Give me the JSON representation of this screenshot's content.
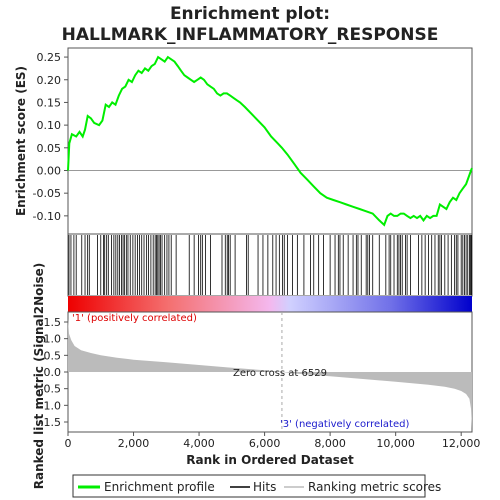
{
  "chart_data": {
    "type": "line",
    "title_line1": "Enrichment plot:",
    "title_line2": "HALLMARK_INFLAMMATORY_RESPONSE",
    "top_panel": {
      "ylabel": "Enrichment score (ES)",
      "ylim": [
        -0.14,
        0.27
      ],
      "yticks": [
        "0.25",
        "0.20",
        "0.15",
        "0.10",
        "0.05",
        "0.00",
        "-0.05",
        "-0.10"
      ],
      "ytick_values": [
        0.25,
        0.2,
        0.15,
        0.1,
        0.05,
        0.0,
        -0.05,
        -0.1
      ],
      "series": [
        {
          "name": "Enrichment profile",
          "color": "#00ee00",
          "x": [
            0,
            40,
            120,
            250,
            350,
            450,
            520,
            600,
            700,
            800,
            950,
            1050,
            1150,
            1250,
            1350,
            1450,
            1550,
            1650,
            1750,
            1850,
            1950,
            2050,
            2150,
            2250,
            2350,
            2450,
            2550,
            2650,
            2750,
            2850,
            2950,
            3050,
            3150,
            3250,
            3350,
            3450,
            3550,
            3650,
            3750,
            3850,
            3950,
            4050,
            4150,
            4250,
            4350,
            4450,
            4550,
            4650,
            4750,
            4850,
            4950,
            5050,
            5150,
            5250,
            5400,
            5600,
            5800,
            6000,
            6200,
            6400,
            6529,
            6700,
            6900,
            7100,
            7300,
            7500,
            7700,
            7900,
            8100,
            8300,
            8500,
            8700,
            8900,
            9100,
            9300,
            9500,
            9650,
            9750,
            9850,
            9950,
            10050,
            10150,
            10250,
            10350,
            10450,
            10550,
            10650,
            10750,
            10850,
            10950,
            11050,
            11150,
            11250,
            11350,
            11450,
            11550,
            11650,
            11750,
            11850,
            11950,
            12050,
            12150,
            12250,
            12300,
            12330
          ],
          "values": [
            0.0,
            0.06,
            0.08,
            0.075,
            0.085,
            0.075,
            0.09,
            0.12,
            0.115,
            0.105,
            0.1,
            0.11,
            0.145,
            0.14,
            0.15,
            0.145,
            0.165,
            0.18,
            0.185,
            0.2,
            0.195,
            0.21,
            0.22,
            0.215,
            0.225,
            0.22,
            0.23,
            0.235,
            0.25,
            0.245,
            0.24,
            0.25,
            0.245,
            0.24,
            0.23,
            0.22,
            0.21,
            0.205,
            0.2,
            0.195,
            0.2,
            0.205,
            0.2,
            0.19,
            0.185,
            0.18,
            0.17,
            0.165,
            0.17,
            0.17,
            0.165,
            0.16,
            0.155,
            0.15,
            0.14,
            0.125,
            0.11,
            0.095,
            0.075,
            0.06,
            0.05,
            0.035,
            0.015,
            -0.005,
            -0.02,
            -0.035,
            -0.05,
            -0.06,
            -0.065,
            -0.07,
            -0.075,
            -0.08,
            -0.085,
            -0.09,
            -0.095,
            -0.11,
            -0.12,
            -0.1,
            -0.095,
            -0.1,
            -0.1,
            -0.095,
            -0.095,
            -0.1,
            -0.105,
            -0.1,
            -0.105,
            -0.1,
            -0.11,
            -0.1,
            -0.105,
            -0.1,
            -0.1,
            -0.075,
            -0.08,
            -0.085,
            -0.07,
            -0.06,
            -0.065,
            -0.05,
            -0.04,
            -0.03,
            -0.01,
            0.0,
            0.005
          ]
        }
      ]
    },
    "hits_panel": {
      "series_name": "Hits",
      "hit_ranks": [
        30,
        90,
        180,
        250,
        420,
        520,
        600,
        650,
        900,
        1000,
        1080,
        1120,
        1180,
        1230,
        1330,
        1400,
        1460,
        1520,
        1570,
        1630,
        1680,
        1720,
        1780,
        1830,
        1900,
        1980,
        2050,
        2120,
        2180,
        2250,
        2320,
        2400,
        2460,
        2530,
        2600,
        2660,
        2700,
        2740,
        2780,
        2820,
        2870,
        2950,
        3020,
        3080,
        3150,
        3300,
        3700,
        3850,
        3980,
        4050,
        4100,
        4200,
        4350,
        4700,
        4800,
        4860,
        4900,
        4950,
        5100,
        5450,
        5500,
        5800,
        5950,
        6100,
        6250,
        6350,
        6450,
        6550,
        6600,
        6700,
        6850,
        7000,
        7200,
        7400,
        7500,
        7650,
        7800,
        8000,
        8150,
        8250,
        8300,
        8400,
        8550,
        8700,
        8800,
        8850,
        8950,
        9100,
        9150,
        9200,
        9300,
        9500,
        9700,
        9800,
        9850,
        9950,
        10050,
        10100,
        10150,
        10200,
        10300,
        10350,
        10450,
        10700,
        10800,
        10900,
        11000,
        11100,
        11200,
        11300,
        11350,
        11400,
        11500,
        11600,
        11700,
        11800,
        11850,
        11900,
        12000,
        12050,
        12100,
        12150,
        12200,
        12250,
        12280,
        12310
      ]
    },
    "gradient_bar": {
      "positive_color": "#ee0000",
      "negative_color": "#0000cc",
      "positive_label": "'1' (positively correlated)",
      "negative_label": "'3' (negatively correlated)",
      "zero_cross_label": "Zero cross at 6529",
      "zero_cross": 6529
    },
    "bottom_panel": {
      "ylabel": "Ranked list metric (Signal2Noise)",
      "ylim": [
        -1.8,
        1.8
      ],
      "yticks": [
        "1.5",
        "1.0",
        "0.5",
        "0.0",
        "-0.5",
        "-1.0",
        "-1.5"
      ],
      "ytick_values": [
        1.5,
        1.0,
        0.5,
        0.0,
        -0.5,
        -1.0,
        -1.5
      ],
      "series_name": "Ranking metric scores",
      "x": [
        0,
        30,
        100,
        200,
        400,
        700,
        1000,
        1500,
        2000,
        3000,
        4000,
        5000,
        6000,
        6529,
        7000,
        8000,
        9000,
        10000,
        11000,
        11500,
        11800,
        12000,
        12150,
        12250,
        12300,
        12330
      ],
      "values": [
        1.6,
        1.15,
        0.95,
        0.78,
        0.65,
        0.57,
        0.5,
        0.43,
        0.37,
        0.29,
        0.21,
        0.13,
        0.05,
        0.0,
        -0.05,
        -0.13,
        -0.21,
        -0.29,
        -0.38,
        -0.44,
        -0.5,
        -0.57,
        -0.66,
        -0.8,
        -1.1,
        -1.7
      ]
    },
    "xlabel": "Rank in Ordered Dataset",
    "xlim": [
      0,
      12330
    ],
    "xticks": [
      "0",
      "2,000",
      "4,000",
      "6,000",
      "8,000",
      "10,000",
      "12,000"
    ],
    "xtick_values": [
      0,
      2000,
      4000,
      6000,
      8000,
      10000,
      12000
    ],
    "legend": {
      "placement": "bottom",
      "items": [
        {
          "label": "Enrichment profile",
          "color": "#00ee00"
        },
        {
          "label": "Hits",
          "color": "#000000"
        },
        {
          "label": "Ranking metric scores",
          "color": "#bbbbbb"
        }
      ]
    }
  }
}
